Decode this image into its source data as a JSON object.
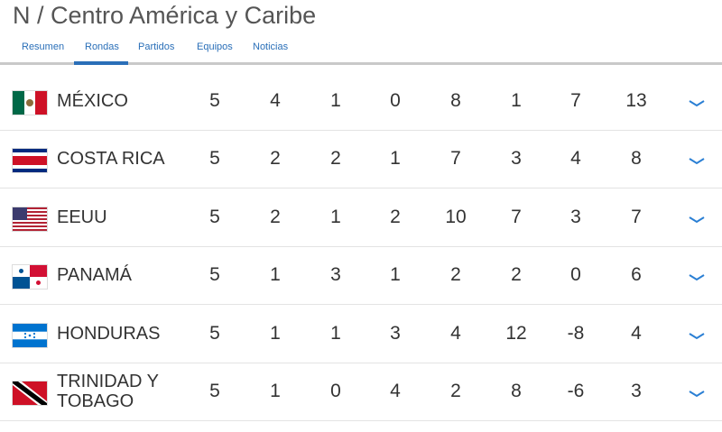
{
  "header": {
    "title": "N / Centro América y Caribe",
    "tabs": [
      "Resumen",
      "Rondas",
      "Partidos",
      "Equipos",
      "Noticias"
    ]
  },
  "table": {
    "rows": [
      [
        "MÉXICO",
        5,
        4,
        1,
        0,
        8,
        1,
        7,
        13
      ],
      [
        "COSTA RICA",
        5,
        2,
        2,
        1,
        7,
        3,
        4,
        8
      ],
      [
        "EEUU",
        5,
        2,
        1,
        2,
        10,
        7,
        3,
        7
      ],
      [
        "PANAMÁ",
        5,
        1,
        3,
        1,
        2,
        2,
        0,
        6
      ],
      [
        "HONDURAS",
        5,
        1,
        1,
        3,
        4,
        12,
        -8,
        4
      ],
      [
        "TRINIDAD Y TOBAGO",
        5,
        1,
        0,
        4,
        2,
        8,
        -6,
        3
      ]
    ]
  }
}
